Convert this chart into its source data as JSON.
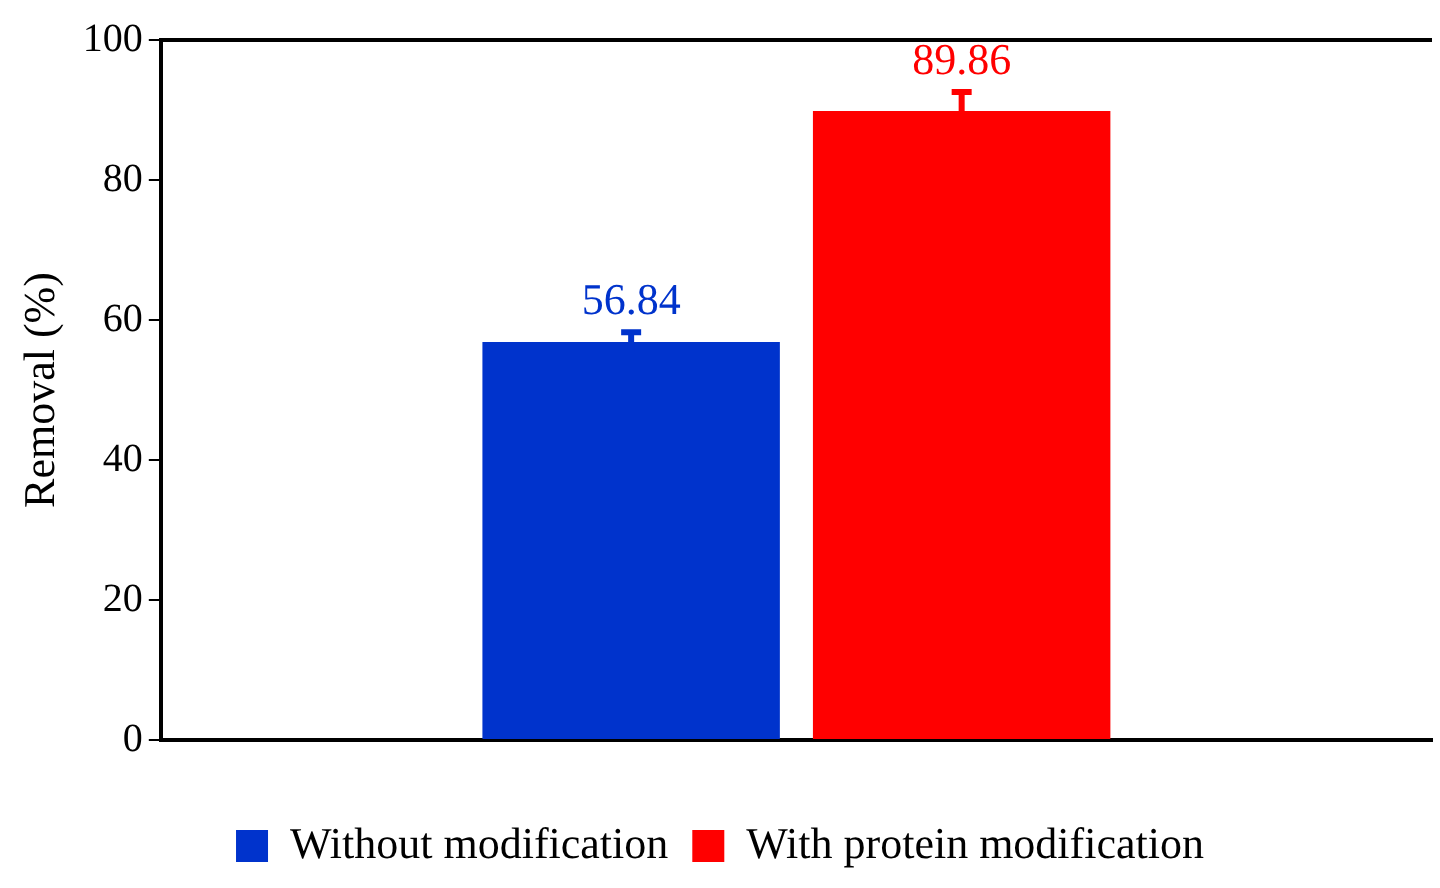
{
  "chart_data": {
    "type": "bar",
    "ylabel": "Removal (%)",
    "categories": [
      null
    ],
    "series": [
      {
        "name": "Without modification",
        "color": "#0033cc",
        "values": [
          56.84
        ],
        "errors": [
          1.4
        ]
      },
      {
        "name": "With protein modification",
        "color": "#ff0000",
        "values": [
          89.86
        ],
        "errors": [
          2.7
        ]
      }
    ],
    "ylim": [
      0,
      100
    ],
    "yticks": [
      0,
      20,
      40,
      60,
      80,
      100
    ],
    "grid": false,
    "legend": "bottom",
    "data_labels": true
  }
}
